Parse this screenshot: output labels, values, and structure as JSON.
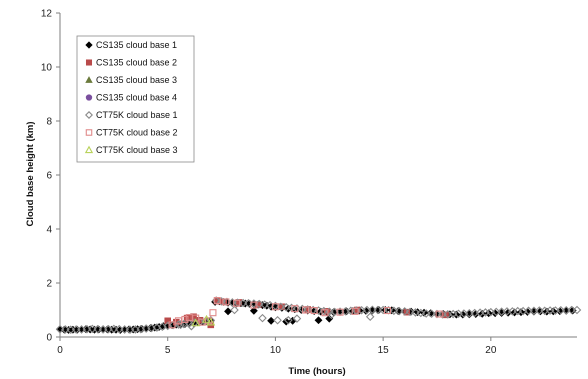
{
  "chart_data": {
    "type": "scatter",
    "title": "",
    "xlabel": "Time (hours)",
    "ylabel": "Cloud base height (km)",
    "xlim": [
      0,
      24
    ],
    "ylim": [
      0,
      12
    ],
    "xticks": [
      0,
      5,
      10,
      15,
      20
    ],
    "yticks": [
      0,
      2,
      4,
      6,
      8,
      10,
      12
    ],
    "grid": false,
    "legend_position": "top-left",
    "series": [
      {
        "name": "CS135 cloud base 1",
        "marker": "diamond",
        "filled": true,
        "color": "#000000",
        "x": [
          0.0,
          0.2,
          0.4,
          0.6,
          0.8,
          1.0,
          1.2,
          1.4,
          1.6,
          1.8,
          2.0,
          2.2,
          2.4,
          2.6,
          2.8,
          3.0,
          3.2,
          3.4,
          3.6,
          3.8,
          4.0,
          4.2,
          4.4,
          4.6,
          4.8,
          5.0,
          5.2,
          5.4,
          5.6,
          5.8,
          6.0,
          6.2,
          6.4,
          6.6,
          6.8,
          7.0,
          7.2,
          7.4,
          7.6,
          7.8,
          8.0,
          8.2,
          8.4,
          8.6,
          8.8,
          9.0,
          9.2,
          9.4,
          9.6,
          9.8,
          10.0,
          10.3,
          10.6,
          10.9,
          11.2,
          11.5,
          11.8,
          12.1,
          12.4,
          12.7,
          13.0,
          13.3,
          13.6,
          13.9,
          14.2,
          14.5,
          14.8,
          15.1,
          15.4,
          15.7,
          16.0,
          16.3,
          16.6,
          16.9,
          17.2,
          17.5,
          17.8,
          18.1,
          18.4,
          18.7,
          19.0,
          19.3,
          19.6,
          19.9,
          20.2,
          20.5,
          20.8,
          21.1,
          21.4,
          21.7,
          22.0,
          22.3,
          22.6,
          22.9,
          23.2,
          23.5,
          23.8,
          7.8,
          9.0,
          9.8,
          10.5,
          10.8,
          12.0,
          12.5
        ],
        "y": [
          0.28,
          0.27,
          0.26,
          0.27,
          0.27,
          0.28,
          0.29,
          0.28,
          0.27,
          0.28,
          0.29,
          0.28,
          0.27,
          0.27,
          0.26,
          0.27,
          0.28,
          0.28,
          0.29,
          0.3,
          0.32,
          0.33,
          0.35,
          0.37,
          0.4,
          0.42,
          0.44,
          0.46,
          0.47,
          0.48,
          0.5,
          0.52,
          0.55,
          0.56,
          0.58,
          0.6,
          1.3,
          1.32,
          1.3,
          1.27,
          1.26,
          1.24,
          1.25,
          1.24,
          1.23,
          1.22,
          1.2,
          1.18,
          1.16,
          1.12,
          1.1,
          1.08,
          1.05,
          1.03,
          1.0,
          0.98,
          0.96,
          0.94,
          0.92,
          0.92,
          0.93,
          0.95,
          0.96,
          0.98,
          0.97,
          0.98,
          1.0,
          1.0,
          0.99,
          0.96,
          0.95,
          0.94,
          0.92,
          0.9,
          0.88,
          0.86,
          0.85,
          0.84,
          0.83,
          0.83,
          0.84,
          0.85,
          0.86,
          0.88,
          0.88,
          0.89,
          0.9,
          0.91,
          0.92,
          0.93,
          0.94,
          0.95,
          0.94,
          0.95,
          0.96,
          0.97,
          0.98,
          0.95,
          0.97,
          0.6,
          0.57,
          0.6,
          0.62,
          0.68
        ]
      },
      {
        "name": "CS135 cloud base 2",
        "marker": "square",
        "filled": true,
        "color": "#b94a4a",
        "x": [
          5.0,
          5.4,
          5.9,
          6.2,
          6.5,
          7.0,
          7.3,
          7.6,
          8.3,
          9.2,
          10.3,
          11.5,
          12.4,
          13.8,
          16.1,
          17.9
        ],
        "y": [
          0.6,
          0.55,
          0.7,
          0.75,
          0.62,
          0.45,
          1.33,
          1.3,
          1.28,
          1.2,
          1.12,
          1.02,
          0.95,
          1.0,
          0.92,
          0.82
        ]
      },
      {
        "name": "CS135 cloud base 3",
        "marker": "triangle",
        "filled": true,
        "color": "#6b7a3c",
        "x": [],
        "y": []
      },
      {
        "name": "CS135 cloud base 4",
        "marker": "circle",
        "filled": true,
        "color": "#7a4f9e",
        "x": [],
        "y": []
      },
      {
        "name": "CT75K cloud base 1",
        "marker": "diamond",
        "filled": false,
        "color": "#8a8a8a",
        "x": [
          0.0,
          0.25,
          0.5,
          0.75,
          1.0,
          1.25,
          1.5,
          1.75,
          2.0,
          2.25,
          2.5,
          2.75,
          3.0,
          3.25,
          3.5,
          3.75,
          4.0,
          4.25,
          4.5,
          4.75,
          5.0,
          5.25,
          5.5,
          5.75,
          6.0,
          6.25,
          6.5,
          6.75,
          7.0,
          7.25,
          7.5,
          7.75,
          8.0,
          8.25,
          8.5,
          8.75,
          9.0,
          9.25,
          9.5,
          9.75,
          10.0,
          10.25,
          10.5,
          10.75,
          11.0,
          11.25,
          11.5,
          11.75,
          12.0,
          12.25,
          12.5,
          12.75,
          13.0,
          13.25,
          13.5,
          13.75,
          14.0,
          14.25,
          14.5,
          14.75,
          15.0,
          15.25,
          15.5,
          15.75,
          16.0,
          16.25,
          16.5,
          16.75,
          17.0,
          17.25,
          17.5,
          17.75,
          18.0,
          18.25,
          18.5,
          18.75,
          19.0,
          19.25,
          19.5,
          19.75,
          20.0,
          20.25,
          20.5,
          20.75,
          21.0,
          21.25,
          21.5,
          21.75,
          22.0,
          22.25,
          22.5,
          22.75,
          23.0,
          23.25,
          23.5,
          23.75,
          24.0,
          5.6,
          6.1,
          8.1,
          9.4,
          10.1,
          10.6,
          11.0,
          12.6,
          14.4
        ],
        "y": [
          0.29,
          0.28,
          0.27,
          0.28,
          0.28,
          0.29,
          0.3,
          0.29,
          0.28,
          0.29,
          0.3,
          0.29,
          0.28,
          0.27,
          0.28,
          0.29,
          0.31,
          0.33,
          0.35,
          0.38,
          0.41,
          0.44,
          0.46,
          0.48,
          0.5,
          0.53,
          0.56,
          0.58,
          0.62,
          1.35,
          1.32,
          1.3,
          1.28,
          1.27,
          1.26,
          1.25,
          1.24,
          1.22,
          1.2,
          1.18,
          1.15,
          1.12,
          1.1,
          1.08,
          1.06,
          1.04,
          1.02,
          1.0,
          0.98,
          0.96,
          0.94,
          0.93,
          0.94,
          0.95,
          0.97,
          0.98,
          0.99,
          1.0,
          1.01,
          1.0,
          1.0,
          0.99,
          0.97,
          0.96,
          0.95,
          0.93,
          0.91,
          0.89,
          0.87,
          0.86,
          0.85,
          0.84,
          0.84,
          0.85,
          0.86,
          0.87,
          0.88,
          0.89,
          0.9,
          0.91,
          0.92,
          0.93,
          0.94,
          0.95,
          0.95,
          0.96,
          0.96,
          0.97,
          0.97,
          0.98,
          0.97,
          0.98,
          0.98,
          0.99,
          0.99,
          1.0,
          1.0,
          0.45,
          0.4,
          1.0,
          0.7,
          0.62,
          0.62,
          0.68,
          0.82,
          0.75
        ]
      },
      {
        "name": "CT75K cloud base 2",
        "marker": "square",
        "filled": false,
        "color": "#e08a8a",
        "x": [
          5.2,
          5.5,
          5.8,
          6.0,
          6.3,
          6.6,
          6.9,
          7.1,
          7.3,
          7.7,
          8.2,
          9.0,
          10.0,
          10.9,
          11.4,
          11.8,
          12.3,
          13.0,
          13.7,
          15.2,
          17.6
        ],
        "y": [
          0.45,
          0.6,
          0.65,
          0.72,
          0.7,
          0.55,
          0.6,
          0.9,
          1.35,
          1.3,
          1.25,
          1.18,
          1.12,
          1.05,
          1.0,
          0.98,
          0.9,
          0.92,
          0.95,
          0.98,
          0.85
        ]
      },
      {
        "name": "CT75K cloud base 3",
        "marker": "triangle",
        "filled": false,
        "color": "#b9d25b",
        "x": [
          6.3,
          6.8,
          7.0
        ],
        "y": [
          0.52,
          0.65,
          0.55
        ]
      }
    ]
  }
}
